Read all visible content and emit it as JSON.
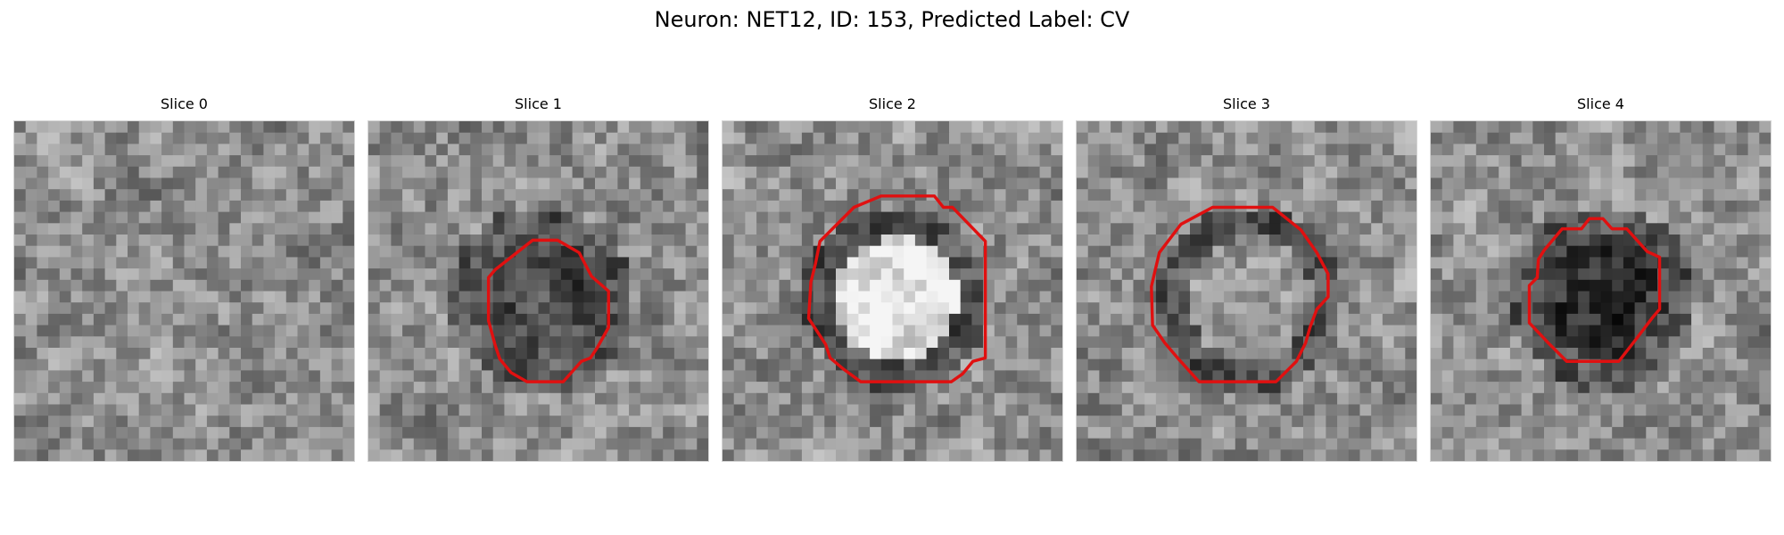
{
  "figure": {
    "title": "Neuron: NET12, ID: 153, Predicted Label: CV"
  },
  "colors": {
    "contour": "#e01010",
    "image_colormap": "grayscale"
  },
  "panels": [
    {
      "label": "Slice 0",
      "has_contour": false,
      "noise_seed": 11,
      "center_brightness": 0.0
    },
    {
      "label": "Slice 1",
      "has_contour": true,
      "noise_seed": 23,
      "center_brightness": -0.25
    },
    {
      "label": "Slice 2",
      "has_contour": true,
      "noise_seed": 37,
      "center_brightness": 0.35
    },
    {
      "label": "Slice 3",
      "has_contour": true,
      "noise_seed": 51,
      "center_brightness": 0.05
    },
    {
      "label": "Slice 4",
      "has_contour": true,
      "noise_seed": 67,
      "center_brightness": -0.35
    }
  ]
}
